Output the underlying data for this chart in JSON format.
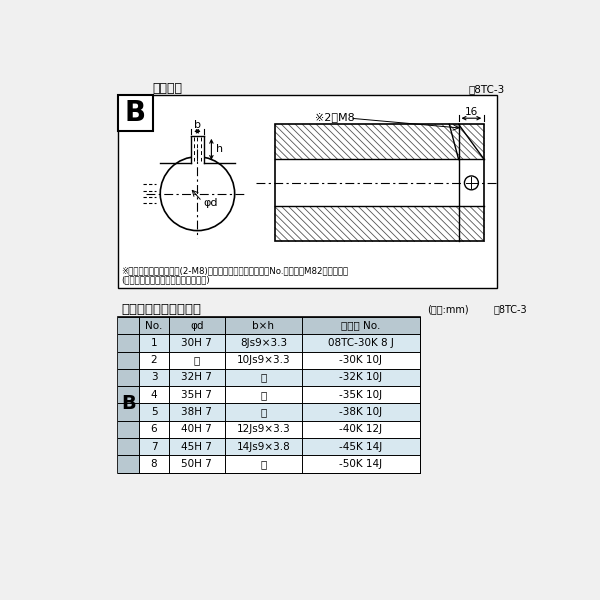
{
  "bg_color": "#f0f0f0",
  "white": "#ffffff",
  "black": "#000000",
  "light_blue": "#d8e8f0",
  "header_gray": "#b8c8d0",
  "title_top": "軸穴形犴",
  "fig_label_top": "图8TC-3",
  "note1": "※セットボルト用タップ(2-M8)が必要な場合は右記コードNo.の末尾にM82を付ける。",
  "note2": "(セットボルトは付属されています。)",
  "title_bottom": "軸穴形犴コード一覧表",
  "unit_label": "(単位:mm)",
  "table_label": "表8TC-3",
  "col_headers": [
    "No.",
    "φd",
    "b×h",
    "コード No."
  ],
  "rows": [
    [
      "1",
      "30H 7",
      "8Js9×3.3",
      "08TC-30K 8 J"
    ],
    [
      "2",
      "〜",
      "10Js9×3.3",
      "-30K 10J"
    ],
    [
      "3",
      "32H 7",
      "〜",
      "-32K 10J"
    ],
    [
      "4",
      "35H 7",
      "〜",
      "-35K 10J"
    ],
    [
      "5",
      "38H 7",
      "〜",
      "-38K 10J"
    ],
    [
      "6",
      "40H 7",
      "12Js9×3.3",
      "-40K 12J"
    ],
    [
      "7",
      "45H 7",
      "14Js9×3.8",
      "-45K 14J"
    ],
    [
      "8",
      "50H 7",
      "〜",
      "-50K 14J"
    ]
  ],
  "B_label": "B",
  "ditto": "〜"
}
